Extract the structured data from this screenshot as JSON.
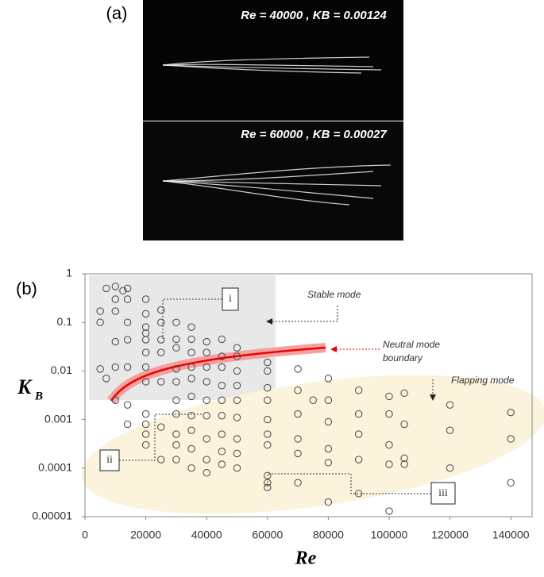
{
  "panel_a": {
    "label": "(a)",
    "captions": [
      "Re = 40000 , KB = 0.00124",
      "Re = 60000 , KB = 0.00027"
    ]
  },
  "panel_b": {
    "label": "(b)",
    "chart_data": {
      "type": "scatter",
      "xlabel": "Re",
      "ylabel": "K",
      "ylabel_sub": "B",
      "xlim": [
        0,
        147000
      ],
      "xticks": [
        0,
        20000,
        40000,
        60000,
        80000,
        100000,
        120000,
        140000
      ],
      "ylim": [
        1e-05,
        1
      ],
      "yticks": [
        1,
        0.1,
        0.01,
        0.001,
        0.0001,
        1e-05
      ],
      "ylog": true,
      "grid": false,
      "color": "#444",
      "annotations": {
        "i": "i",
        "ii": "ii",
        "iii": "iii",
        "stable": "Stable mode",
        "neutral": [
          "Neutral mode",
          "boundary"
        ],
        "flapping": "Flapping mode"
      },
      "x": [
        5000,
        5000,
        5000,
        7000,
        7000,
        10000,
        10000,
        10000,
        10000,
        10000,
        10000,
        12500,
        14000,
        14000,
        14000,
        14000,
        14000,
        14000,
        14000,
        20000,
        20000,
        20000,
        20000,
        20000,
        20000,
        20000,
        20000,
        20000,
        20000,
        20000,
        20000,
        25000,
        25000,
        25000,
        25000,
        25000,
        25000,
        25000,
        30000,
        30000,
        30000,
        30000,
        30000,
        30000,
        30000,
        30000,
        30000,
        30000,
        35000,
        35000,
        35000,
        35000,
        35000,
        35000,
        35000,
        35000,
        35000,
        35000,
        40000,
        40000,
        40000,
        40000,
        40000,
        40000,
        40000,
        40000,
        40000,
        45000,
        45000,
        45000,
        45000,
        45000,
        45000,
        45000,
        45000,
        45000,
        50000,
        50000,
        50000,
        50000,
        50000,
        50000,
        50000,
        50000,
        50000,
        60000,
        60000,
        60000,
        60000,
        60000,
        60000,
        60000,
        60000,
        60000,
        60000,
        70000,
        70000,
        70000,
        70000,
        70000,
        70000,
        75000,
        80000,
        80000,
        80000,
        80000,
        80000,
        80000,
        90000,
        90000,
        90000,
        90000,
        90000,
        100000,
        100000,
        100000,
        100000,
        100000,
        105000,
        105000,
        105000,
        105000,
        120000,
        120000,
        120000,
        140000,
        140000,
        140000
      ],
      "values": [
        0.17,
        0.1,
        0.011,
        0.5,
        0.007,
        0.55,
        0.3,
        0.17,
        0.04,
        0.012,
        0.0025,
        0.45,
        0.5,
        0.3,
        0.1,
        0.044,
        0.012,
        0.002,
        0.0008,
        0.3,
        0.15,
        0.08,
        0.06,
        0.044,
        0.024,
        0.012,
        0.006,
        0.0013,
        0.0008,
        0.0005,
        0.0003,
        0.18,
        0.1,
        0.044,
        0.024,
        0.006,
        0.0007,
        0.00015,
        0.1,
        0.045,
        0.03,
        0.011,
        0.006,
        0.0025,
        0.0013,
        0.0005,
        0.0003,
        0.00015,
        0.08,
        0.045,
        0.024,
        0.012,
        0.007,
        0.003,
        0.0012,
        0.0006,
        0.00025,
        0.0001,
        0.04,
        0.024,
        0.012,
        0.006,
        0.0025,
        0.0012,
        0.0004,
        0.00015,
        8e-05,
        0.045,
        0.02,
        0.012,
        0.005,
        0.0025,
        0.0012,
        0.0005,
        0.00022,
        0.00012,
        0.03,
        0.02,
        0.01,
        0.005,
        0.0025,
        0.0011,
        0.0004,
        0.0002,
        0.0001,
        0.015,
        0.01,
        0.0045,
        0.0025,
        0.001,
        0.0005,
        0.0003,
        7e-05,
        5e-05,
        4e-05,
        0.011,
        0.004,
        0.0013,
        0.0004,
        0.0002,
        5e-05,
        0.0025,
        0.007,
        0.0025,
        0.0009,
        0.00025,
        0.00013,
        2e-05,
        0.004,
        0.0013,
        0.0005,
        0.00015,
        3e-05,
        0.003,
        0.0013,
        0.0003,
        0.00012,
        1.3e-05,
        0.0035,
        0.0008,
        0.00016,
        0.00012,
        0.002,
        0.0006,
        0.0001,
        0.0014,
        0.0004,
        5e-05
      ]
    }
  }
}
